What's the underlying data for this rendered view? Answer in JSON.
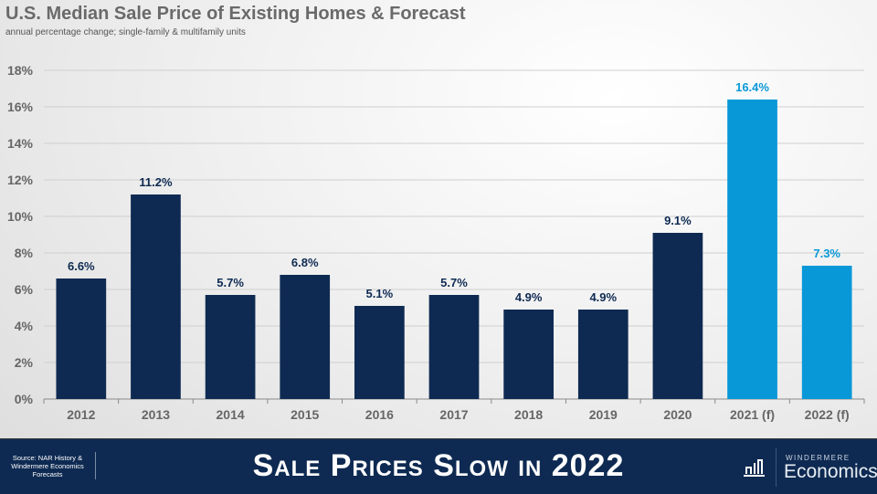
{
  "header": {
    "title": "U.S. Median Sale Price of Existing Homes & Forecast",
    "subtitle": "annual percentage change; single-family & multifamily units"
  },
  "footer": {
    "source": "Source: NAR History & Windermere Economics Forecasts",
    "banner": "Sale Prices Slow in 2022",
    "logo_top": "WINDERMERE",
    "logo_main": "Economics"
  },
  "colors": {
    "actual": "#0e2a52",
    "forecast": "#0898d8",
    "axis_text": "#666666"
  },
  "chart_data": {
    "type": "bar",
    "title": "U.S. Median Sale Price of Existing Homes & Forecast",
    "subtitle": "annual percentage change; single-family & multifamily units",
    "xlabel": "",
    "ylabel": "",
    "categories": [
      "2012",
      "2013",
      "2014",
      "2015",
      "2016",
      "2017",
      "2018",
      "2019",
      "2020",
      "2021 (f)",
      "2022 (f)"
    ],
    "values": [
      6.6,
      11.2,
      5.7,
      6.8,
      5.1,
      5.7,
      4.9,
      4.9,
      9.1,
      16.4,
      7.3
    ],
    "labels": [
      "6.6%",
      "11.2%",
      "5.7%",
      "6.8%",
      "5.1%",
      "5.7%",
      "4.9%",
      "4.9%",
      "9.1%",
      "16.4%",
      "7.3%"
    ],
    "forecast": [
      false,
      false,
      false,
      false,
      false,
      false,
      false,
      false,
      false,
      true,
      true
    ],
    "ylim": [
      0,
      18
    ],
    "yticks": [
      0,
      2,
      4,
      6,
      8,
      10,
      12,
      14,
      16,
      18
    ],
    "ytick_labels": [
      "0%",
      "2%",
      "4%",
      "6%",
      "8%",
      "10%",
      "12%",
      "14%",
      "16%",
      "18%"
    ],
    "grid": true,
    "legend": "none"
  }
}
